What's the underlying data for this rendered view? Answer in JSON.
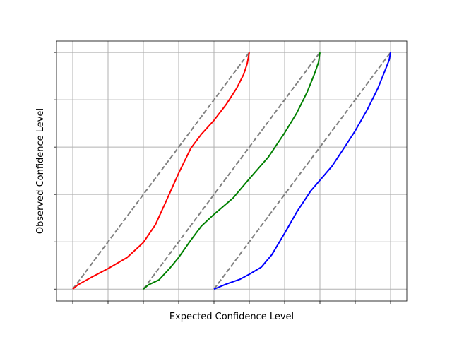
{
  "chart_data": {
    "type": "line",
    "xlabel": "Expected Confidence Level",
    "ylabel": "Observed Confidence Level",
    "xlim": [
      -0.092,
      1.892
    ],
    "ylim": [
      -0.05,
      1.048
    ],
    "xticks": [
      0,
      0.2,
      0.4,
      0.6,
      0.8,
      1,
      1.2,
      1.4,
      1.6,
      1.8
    ],
    "yticks": [
      0,
      0.2,
      0.4,
      0.6,
      0.8,
      1
    ],
    "grid": true,
    "series": [
      {
        "color": "#808080",
        "dashed": true,
        "x": [
          0,
          1
        ],
        "values": [
          0,
          1
        ]
      },
      {
        "color": "#808080",
        "dashed": true,
        "x": [
          0.4,
          1.4
        ],
        "values": [
          0,
          1
        ]
      },
      {
        "color": "#808080",
        "dashed": true,
        "x": [
          0.8,
          1.8
        ],
        "values": [
          0,
          1
        ]
      },
      {
        "color": "#ff0000",
        "x": [
          0,
          0.028,
          0.108,
          0.2,
          0.308,
          0.4,
          0.468,
          0.528,
          0.6,
          0.668,
          0.728,
          0.8,
          0.868,
          0.928,
          0.968,
          0.988,
          1.0
        ],
        "values": [
          0,
          0.018,
          0.051,
          0.087,
          0.134,
          0.197,
          0.272,
          0.37,
          0.49,
          0.594,
          0.654,
          0.713,
          0.779,
          0.848,
          0.907,
          0.952,
          1.0
        ]
      },
      {
        "color": "#008000",
        "x": [
          0.4,
          0.428,
          0.488,
          0.548,
          0.6,
          0.668,
          0.728,
          0.8,
          0.908,
          1.0,
          1.108,
          1.2,
          1.268,
          1.328,
          1.368,
          1.392,
          1.4
        ],
        "values": [
          0,
          0.018,
          0.039,
          0.087,
          0.134,
          0.206,
          0.266,
          0.316,
          0.385,
          0.466,
          0.558,
          0.66,
          0.743,
          0.833,
          0.907,
          0.958,
          1.0
        ]
      },
      {
        "color": "#0000ff",
        "x": [
          0.8,
          0.868,
          0.948,
          1.0,
          1.068,
          1.128,
          1.2,
          1.268,
          1.348,
          1.4,
          1.468,
          1.548,
          1.6,
          1.668,
          1.728,
          1.768,
          1.792,
          1.8
        ],
        "values": [
          0,
          0.021,
          0.042,
          0.063,
          0.093,
          0.146,
          0.236,
          0.325,
          0.415,
          0.46,
          0.519,
          0.609,
          0.669,
          0.758,
          0.848,
          0.922,
          0.967,
          1.0
        ]
      }
    ]
  }
}
